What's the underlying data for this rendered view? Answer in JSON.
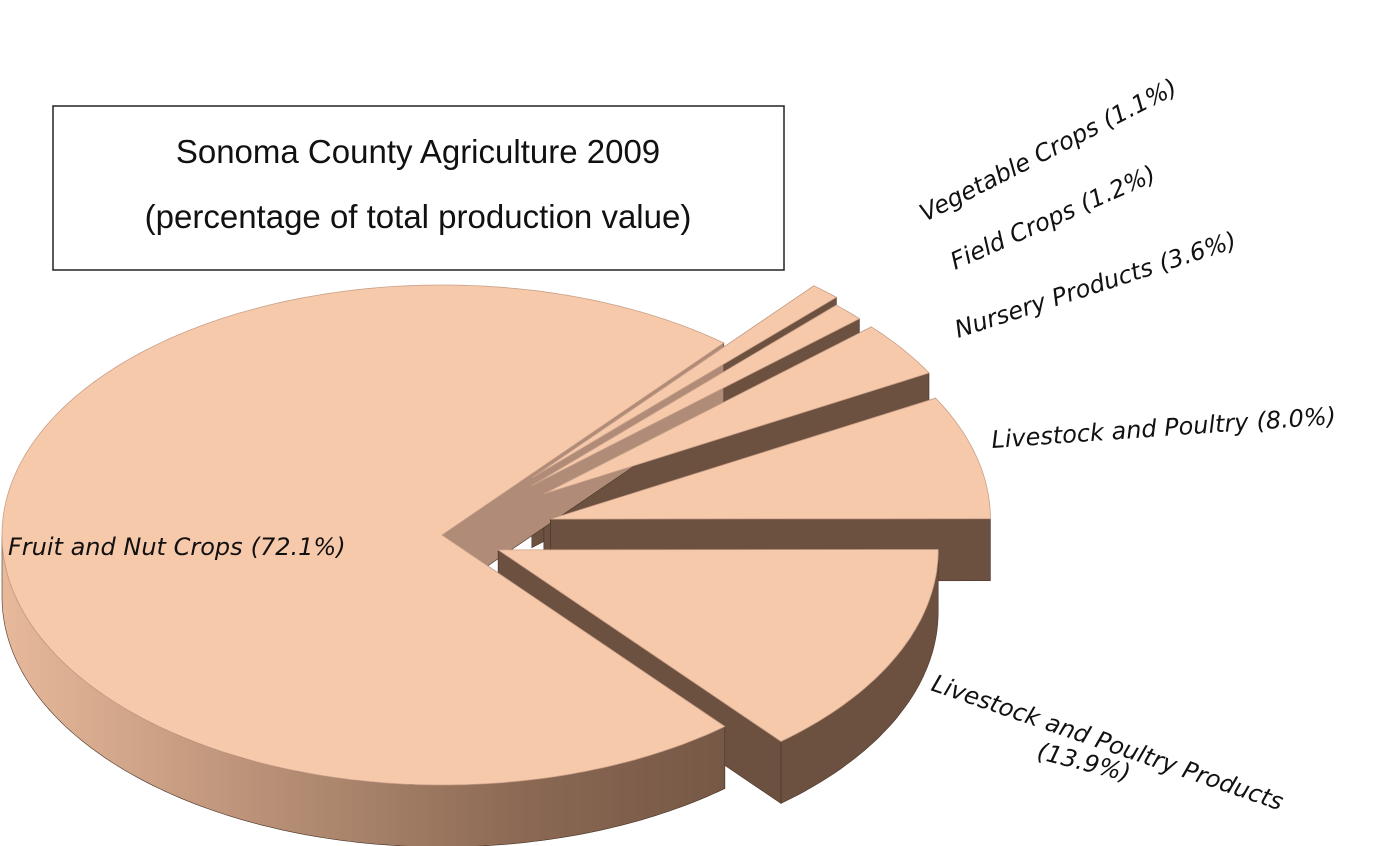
{
  "chart_data": {
    "type": "pie",
    "title": "Sonoma County Agriculture 2009",
    "subtitle": "(percentage of total production value)",
    "categories": [
      "Fruit and Nut Crops",
      "Vegetable Crops",
      "Field Crops",
      "Nursery Products",
      "Livestock and Poultry",
      "Livestock and Poultry Products"
    ],
    "values": [
      72.1,
      1.1,
      1.2,
      3.6,
      8.0,
      13.9
    ],
    "value_labels": [
      "(72.1%)",
      "(1.1%)",
      "(1.2%)",
      "(3.6%)",
      "(8.0%)",
      "(13.9%)"
    ],
    "color": "#f7c9ab",
    "side_color": "#6d5140"
  }
}
